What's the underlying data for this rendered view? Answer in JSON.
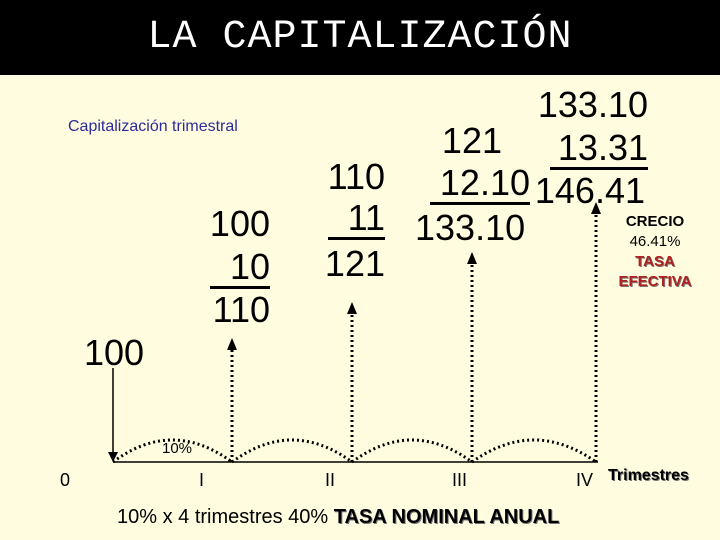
{
  "header": {
    "title": "LA CAPITALIZACIÓN"
  },
  "subtitle": "Capitalización trimestral",
  "quarters": [
    {
      "capital": "100",
      "interest": "10",
      "total": "110"
    },
    {
      "capital": "110",
      "interest": "11",
      "total": "121"
    },
    {
      "capital": "121",
      "interest": "12.10",
      "total": "133.10"
    },
    {
      "capital": "133.10",
      "interest": "13.31",
      "total": "146.41"
    }
  ],
  "initial_amount": "100",
  "rate_label": "10%",
  "timeline": {
    "labels": [
      "0",
      "I",
      "II",
      "III",
      "IV"
    ],
    "unit": "Trimestres"
  },
  "effective": {
    "line1": "CRECIO",
    "line2": "46.41%",
    "line3": "TASA",
    "line4": "EFECTIVA"
  },
  "footer": {
    "prefix": "10% x 4 trimestres 40%",
    "emphasis": "TASA NOMINAL ANUAL"
  },
  "colors": {
    "background": "#fffce0",
    "header": "#000000",
    "subtitle": "#2b2b9c",
    "accent": "#b0201e"
  }
}
